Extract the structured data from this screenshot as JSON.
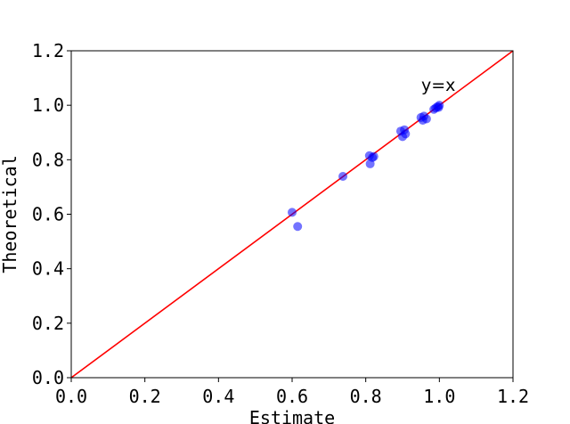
{
  "chart_data": {
    "type": "scatter",
    "xlabel": "Estimate",
    "ylabel": "Theoretical",
    "xlim": [
      0.0,
      1.2
    ],
    "ylim": [
      0.0,
      1.2
    ],
    "xticks": [
      "0.0",
      "0.2",
      "0.4",
      "0.6",
      "0.8",
      "1.0",
      "1.2"
    ],
    "yticks": [
      "0.0",
      "0.2",
      "0.4",
      "0.6",
      "0.8",
      "1.0",
      "1.2"
    ],
    "grid": false,
    "reference_line": {
      "label": "y=x",
      "slope": 1,
      "intercept": 0,
      "color": "#ff0000"
    },
    "point_color": "#0000ff",
    "point_alpha": 0.55,
    "points": [
      {
        "x": 0.6,
        "y": 0.607
      },
      {
        "x": 0.615,
        "y": 0.555
      },
      {
        "x": 0.738,
        "y": 0.739
      },
      {
        "x": 0.81,
        "y": 0.815
      },
      {
        "x": 0.812,
        "y": 0.785
      },
      {
        "x": 0.818,
        "y": 0.808
      },
      {
        "x": 0.822,
        "y": 0.812
      },
      {
        "x": 0.895,
        "y": 0.905
      },
      {
        "x": 0.9,
        "y": 0.885
      },
      {
        "x": 0.905,
        "y": 0.91
      },
      {
        "x": 0.908,
        "y": 0.895
      },
      {
        "x": 0.95,
        "y": 0.955
      },
      {
        "x": 0.955,
        "y": 0.945
      },
      {
        "x": 0.958,
        "y": 0.96
      },
      {
        "x": 0.965,
        "y": 0.95
      },
      {
        "x": 0.985,
        "y": 0.985
      },
      {
        "x": 0.99,
        "y": 0.99
      },
      {
        "x": 0.995,
        "y": 0.995
      },
      {
        "x": 0.998,
        "y": 0.992
      },
      {
        "x": 1.0,
        "y": 1.0
      }
    ]
  }
}
